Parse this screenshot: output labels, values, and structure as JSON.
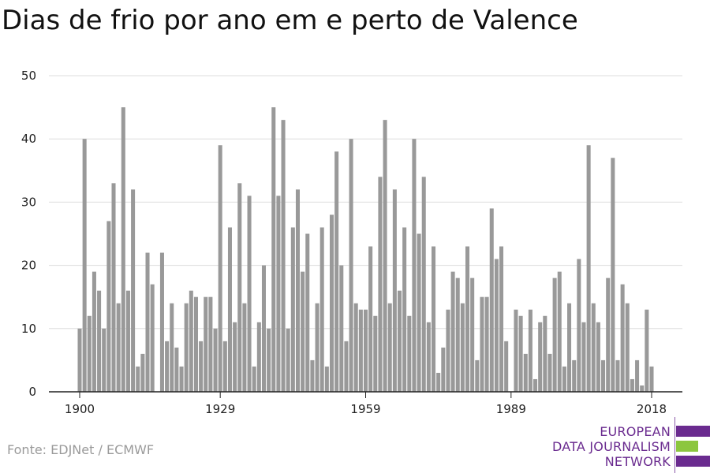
{
  "chart_data": {
    "type": "bar",
    "title": "Dias de frio por ano em e perto de Valence",
    "xlabel": "",
    "ylabel": "",
    "ylim": [
      0,
      50
    ],
    "yticks": [
      0,
      10,
      20,
      30,
      40,
      50
    ],
    "xticks": [
      1900,
      1929,
      1959,
      1989,
      2018
    ],
    "grid": true,
    "bar_color": "#999999",
    "x": [
      1900,
      1901,
      1902,
      1903,
      1904,
      1905,
      1906,
      1907,
      1908,
      1909,
      1910,
      1911,
      1912,
      1913,
      1914,
      1915,
      1916,
      1917,
      1918,
      1919,
      1920,
      1921,
      1922,
      1923,
      1924,
      1925,
      1926,
      1927,
      1928,
      1929,
      1930,
      1931,
      1932,
      1933,
      1934,
      1935,
      1936,
      1937,
      1938,
      1939,
      1940,
      1941,
      1942,
      1943,
      1944,
      1945,
      1946,
      1947,
      1948,
      1949,
      1950,
      1951,
      1952,
      1953,
      1954,
      1955,
      1956,
      1957,
      1958,
      1959,
      1960,
      1961,
      1962,
      1963,
      1964,
      1965,
      1966,
      1967,
      1968,
      1969,
      1970,
      1971,
      1972,
      1973,
      1974,
      1975,
      1976,
      1977,
      1978,
      1979,
      1980,
      1981,
      1982,
      1983,
      1984,
      1985,
      1986,
      1987,
      1988,
      1989,
      1990,
      1991,
      1992,
      1993,
      1994,
      1995,
      1996,
      1997,
      1998,
      1999,
      2000,
      2001,
      2002,
      2003,
      2004,
      2005,
      2006,
      2007,
      2008,
      2009,
      2010,
      2011,
      2012,
      2013,
      2014,
      2015,
      2016,
      2017,
      2018
    ],
    "values": [
      10,
      40,
      12,
      19,
      16,
      10,
      27,
      33,
      14,
      45,
      16,
      32,
      4,
      6,
      22,
      17,
      0,
      22,
      8,
      14,
      7,
      4,
      14,
      16,
      15,
      8,
      15,
      15,
      10,
      39,
      8,
      26,
      11,
      33,
      14,
      31,
      4,
      11,
      20,
      10,
      45,
      31,
      43,
      10,
      26,
      32,
      19,
      25,
      5,
      14,
      26,
      4,
      28,
      38,
      20,
      8,
      40,
      14,
      13,
      13,
      23,
      12,
      34,
      43,
      14,
      32,
      16,
      26,
      12,
      40,
      25,
      34,
      11,
      23,
      3,
      7,
      13,
      19,
      18,
      14,
      23,
      18,
      5,
      15,
      15,
      29,
      21,
      23,
      8,
      0,
      13,
      12,
      6,
      13,
      2,
      11,
      12,
      6,
      18,
      19,
      4,
      14,
      5,
      21,
      11,
      39,
      14,
      11,
      5,
      18,
      37,
      5,
      17,
      14,
      2,
      5,
      1,
      13,
      4
    ]
  },
  "source": "Fonte: EDJNet / ECMWF",
  "logo": {
    "lines": [
      "EUROPEAN",
      "DATA JOURNALISM",
      "NETWORK"
    ],
    "colors": [
      "#6a2b8f",
      "#8cc63f",
      "#6a2b8f"
    ]
  }
}
